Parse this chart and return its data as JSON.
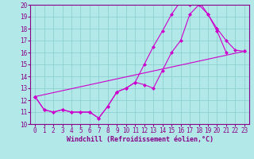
{
  "xlabel": "Windchill (Refroidissement éolien,°C)",
  "bg_color": "#b3e8e8",
  "line_color": "#cc00cc",
  "grid_color": "#88cccc",
  "xlim": [
    -0.5,
    23.5
  ],
  "ylim": [
    10,
    20
  ],
  "yticks": [
    10,
    11,
    12,
    13,
    14,
    15,
    16,
    17,
    18,
    19,
    20
  ],
  "xticks": [
    0,
    1,
    2,
    3,
    4,
    5,
    6,
    7,
    8,
    9,
    10,
    11,
    12,
    13,
    14,
    15,
    16,
    17,
    18,
    19,
    20,
    21,
    22,
    23
  ],
  "line1_x": [
    0,
    1,
    2,
    3,
    4,
    5,
    6,
    7,
    8,
    9,
    10,
    11,
    12,
    13,
    14,
    15,
    16,
    17,
    18,
    19,
    20,
    21
  ],
  "line1_y": [
    12.3,
    11.2,
    11.0,
    11.2,
    11.0,
    11.0,
    11.0,
    10.5,
    11.5,
    12.7,
    13.0,
    13.5,
    15.0,
    16.5,
    17.8,
    19.2,
    20.3,
    20.0,
    20.3,
    19.2,
    17.8,
    16.0
  ],
  "line2_x": [
    0,
    1,
    2,
    3,
    4,
    5,
    6,
    7,
    8,
    9,
    10,
    11,
    12,
    13,
    14,
    15,
    16,
    17,
    18,
    19,
    20,
    21,
    22,
    23
  ],
  "line2_y": [
    12.3,
    11.2,
    11.0,
    11.2,
    11.0,
    11.0,
    11.0,
    10.5,
    11.5,
    12.7,
    13.0,
    13.5,
    13.3,
    13.0,
    14.5,
    16.0,
    17.0,
    19.2,
    20.0,
    19.2,
    18.0,
    17.0,
    16.2,
    16.1
  ],
  "line3_x": [
    0,
    23
  ],
  "line3_y": [
    12.3,
    16.1
  ],
  "markersize": 2.5,
  "linewidth": 0.8,
  "tick_labelsize": 5.5,
  "xlabel_fontsize": 6,
  "tick_color": "#880088",
  "spine_color": "#880088"
}
